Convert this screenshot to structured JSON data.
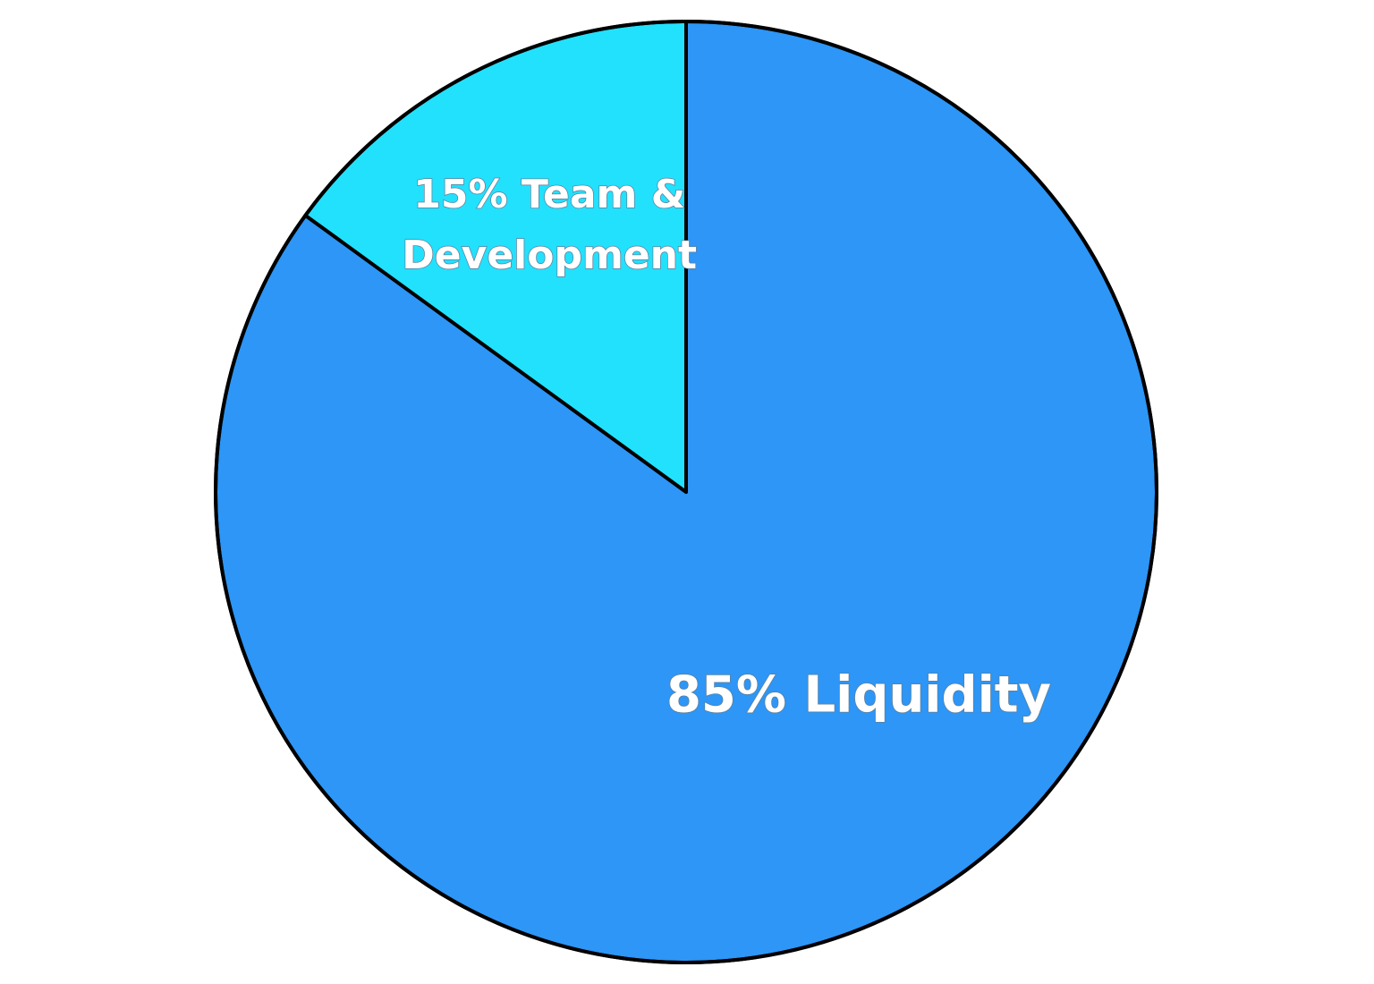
{
  "chart_data": {
    "type": "pie",
    "start_angle_deg": 0,
    "direction": "clockwise",
    "slices": [
      {
        "name": "Liquidity",
        "value": 85,
        "color": "#2d96f6",
        "label_lines": [
          "85% Liquidity"
        ]
      },
      {
        "name": "Team & Development",
        "value": 15,
        "color": "#22e1fd",
        "label_lines": [
          "15% Team &",
          "Development"
        ]
      }
    ],
    "stroke_color": "#000000"
  }
}
